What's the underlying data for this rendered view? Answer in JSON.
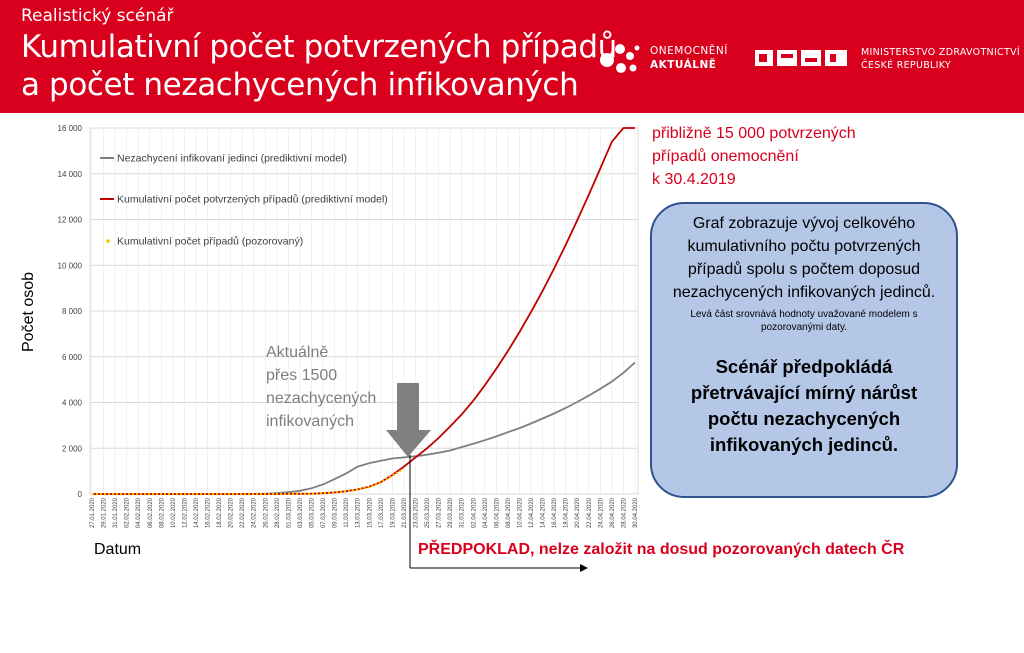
{
  "header": {
    "kicker": "Realistický scénář",
    "title_line1": "Kumulativní počet potvrzených případů",
    "title_line2": "a počet nezachycených infikovaných",
    "logo1_line1": "ONEMOCNĚNÍ",
    "logo1_line2": "AKTUÁLNĚ",
    "logo2_line1": "MINISTERSTVO ZDRAVOTNICTVÍ",
    "logo2_line2": "ČESKÉ REPUBLIKY",
    "color": "#d8001d"
  },
  "note_red": {
    "line1": "přibližně 15 000 potvrzených",
    "line2": "případů onemocnění",
    "line3": "k 30.4.2019"
  },
  "info_box": {
    "main": "Graf zobrazuje vývoj celkového kumulativního počtu potvrzených případů spolu s počtem doposud nezachycených infikovaných jedinců.",
    "small": "Levá část srovnává hodnoty uvažované modelem s pozorovanými daty.",
    "bold": "Scénář předpokládá přetrvávající mírný nárůst počtu nezachycených infikovaných jedinců."
  },
  "annotation": {
    "line1": "Aktuálně",
    "line2": "přes 1500",
    "line3": "nezachycených",
    "line4": "infikovaných"
  },
  "assumption_label": "PŘEDPOKLAD, nelze založit na dosud pozorovaných datech ČR",
  "chart_data": {
    "type": "line",
    "xlabel": "Datum",
    "ylabel": "Počet osob",
    "ylim": [
      0,
      16000
    ],
    "yticks": [
      "0",
      "2 000",
      "4 000",
      "6 000",
      "8 000",
      "10 000",
      "12 000",
      "14 000",
      "16 000"
    ],
    "grid": true,
    "legend_position": "top-left",
    "x": [
      "27.01.2020",
      "29.01.2020",
      "31.01.2020",
      "02.02.2020",
      "04.02.2020",
      "06.02.2020",
      "08.02.2020",
      "10.02.2020",
      "12.02.2020",
      "14.02.2020",
      "16.02.2020",
      "18.02.2020",
      "20.02.2020",
      "22.02.2020",
      "24.02.2020",
      "26.02.2020",
      "28.02.2020",
      "01.03.2020",
      "03.03.2020",
      "05.03.2020",
      "07.03.2020",
      "09.03.2020",
      "11.03.2020",
      "13.03.2020",
      "15.03.2020",
      "17.03.2020",
      "19.03.2020",
      "21.03.2020",
      "23.03.2020",
      "25.03.2020",
      "27.03.2020",
      "29.03.2020",
      "31.03.2020",
      "02.04.2020",
      "04.04.2020",
      "06.04.2020",
      "08.04.2020",
      "10.04.2020",
      "12.04.2020",
      "14.04.2020",
      "16.04.2020",
      "18.04.2020",
      "20.04.2020",
      "22.04.2020",
      "24.04.2020",
      "26.04.2020",
      "28.04.2020",
      "30.04.2020"
    ],
    "series": [
      {
        "name": "Nezachycení infikovaní jedinci (prediktivní model)",
        "color": "#7f7f7f",
        "style": "line",
        "values": [
          0,
          0,
          0,
          0,
          0,
          0,
          0,
          0,
          0,
          0,
          0,
          0,
          0,
          0,
          5,
          15,
          40,
          80,
          140,
          250,
          420,
          650,
          900,
          1200,
          1350,
          1450,
          1550,
          1600,
          1650,
          1720,
          1800,
          1900,
          2050,
          2200,
          2350,
          2520,
          2700,
          2880,
          3080,
          3300,
          3520,
          3760,
          4020,
          4300,
          4600,
          4920,
          5300,
          5750
        ]
      },
      {
        "name": "Kumulativní počet potvrzených případů (prediktivní model)",
        "color": "#c00000",
        "style": "line",
        "values": [
          0,
          0,
          0,
          0,
          0,
          0,
          0,
          0,
          0,
          0,
          0,
          0,
          0,
          0,
          0,
          0,
          0,
          3,
          8,
          15,
          35,
          70,
          120,
          200,
          320,
          520,
          830,
          1200,
          1600,
          2000,
          2450,
          2950,
          3480,
          4080,
          4750,
          5480,
          6250,
          7080,
          7950,
          8880,
          9860,
          10890,
          11960,
          13080,
          14230,
          15400,
          16600,
          17000
        ]
      },
      {
        "name": "Kumulativní počet případů (pozorovaný)",
        "color": "#ffc000",
        "style": "dotted",
        "values": [
          0,
          0,
          0,
          0,
          0,
          0,
          0,
          0,
          0,
          0,
          0,
          0,
          0,
          0,
          0,
          0,
          0,
          3,
          8,
          15,
          35,
          70,
          120,
          200,
          300,
          500,
          800,
          1100,
          null,
          null,
          null,
          null,
          null,
          null,
          null,
          null,
          null,
          null,
          null,
          null,
          null,
          null,
          null,
          null,
          null,
          null,
          null,
          null
        ]
      }
    ],
    "annotation": "Aktuálně přes 1500 nezachycených infikovaných"
  }
}
